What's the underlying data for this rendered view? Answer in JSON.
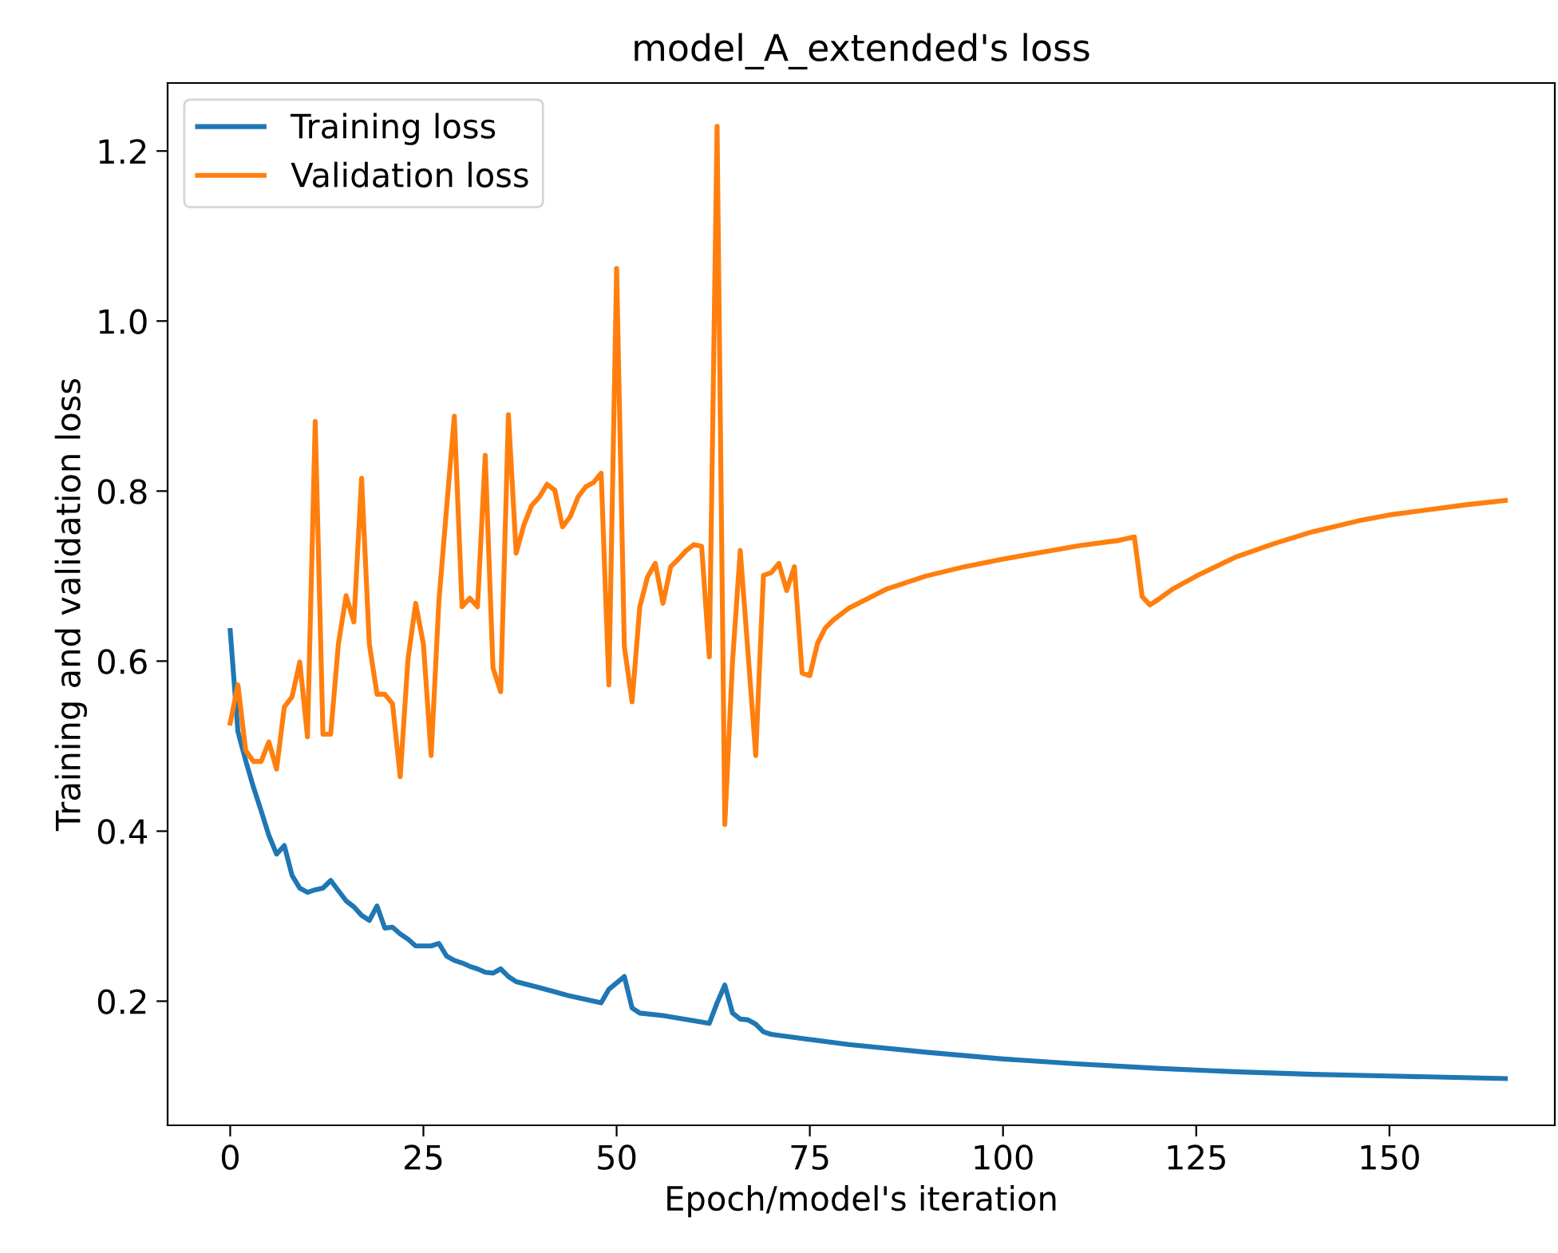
{
  "chart_data": {
    "type": "line",
    "title": "model_A_extended's loss",
    "xlabel": "Epoch/model's iteration",
    "ylabel": "Training and validation loss",
    "xlim": [
      -8.1,
      171.4
    ],
    "ylim": [
      0.054,
      1.28
    ],
    "xticks": [
      0,
      25,
      50,
      75,
      100,
      125,
      150
    ],
    "yticks": [
      0.2,
      0.4,
      0.6,
      0.8,
      {
        "value": 1.0,
        "label": "1.0"
      },
      1.2
    ],
    "grid": false,
    "legend": "top left",
    "series": [
      {
        "name": "Training loss",
        "color": "#1f77b4",
        "x": [
          0,
          1,
          2,
          3,
          4,
          5,
          6,
          7,
          8,
          9,
          10,
          11,
          12,
          13,
          14,
          15,
          16,
          17,
          18,
          19,
          20,
          21,
          22,
          23,
          24,
          25,
          26,
          27,
          28,
          29,
          30,
          31,
          32,
          33,
          34,
          35,
          36,
          37,
          40,
          42,
          44,
          46,
          48,
          49,
          51,
          52,
          53,
          56,
          58,
          60,
          62,
          63,
          64,
          65,
          66,
          67,
          68,
          69,
          70,
          75,
          80,
          90,
          100,
          110,
          120,
          130,
          140,
          150,
          165
        ],
        "values": [
          0.636,
          0.517,
          0.483,
          0.452,
          0.424,
          0.395,
          0.373,
          0.383,
          0.348,
          0.333,
          0.328,
          0.331,
          0.333,
          0.342,
          0.33,
          0.318,
          0.311,
          0.301,
          0.295,
          0.312,
          0.286,
          0.287,
          0.279,
          0.273,
          0.265,
          0.265,
          0.265,
          0.268,
          0.253,
          0.248,
          0.245,
          0.241,
          0.238,
          0.234,
          0.233,
          0.238,
          0.229,
          0.223,
          0.216,
          0.211,
          0.206,
          0.202,
          0.198,
          0.214,
          0.229,
          0.192,
          0.186,
          0.183,
          0.18,
          0.177,
          0.174,
          0.198,
          0.219,
          0.186,
          0.179,
          0.178,
          0.173,
          0.164,
          0.161,
          0.155,
          0.149,
          0.14,
          0.132,
          0.126,
          0.121,
          0.117,
          0.114,
          0.112,
          0.109
        ]
      },
      {
        "name": "Validation loss",
        "color": "#ff7f0e",
        "x": [
          0,
          1,
          2,
          3,
          4,
          5,
          6,
          7,
          8,
          9,
          10,
          11,
          12,
          13,
          14,
          15,
          16,
          17,
          18,
          19,
          20,
          21,
          22,
          23,
          24,
          25,
          26,
          27,
          28,
          29,
          30,
          31,
          32,
          33,
          34,
          35,
          36,
          37,
          38,
          39,
          40,
          41,
          42,
          43,
          44,
          45,
          46,
          47,
          48,
          49,
          50,
          51,
          52,
          53,
          54,
          55,
          56,
          57,
          58,
          59,
          60,
          61,
          62,
          63,
          64,
          65,
          66,
          67,
          68,
          69,
          70,
          71,
          72,
          73,
          74,
          75,
          76,
          77,
          78,
          80,
          85,
          90,
          95,
          100,
          105,
          110,
          115,
          117,
          118,
          119,
          120,
          122,
          125,
          130,
          135,
          140,
          146,
          150,
          155,
          160,
          165
        ],
        "values": [
          0.527,
          0.572,
          0.495,
          0.482,
          0.482,
          0.505,
          0.473,
          0.546,
          0.558,
          0.599,
          0.511,
          0.882,
          0.514,
          0.514,
          0.62,
          0.677,
          0.646,
          0.815,
          0.62,
          0.561,
          0.561,
          0.55,
          0.464,
          0.602,
          0.668,
          0.62,
          0.489,
          0.67,
          0.78,
          0.888,
          0.664,
          0.674,
          0.664,
          0.842,
          0.592,
          0.564,
          0.89,
          0.727,
          0.76,
          0.783,
          0.793,
          0.808,
          0.801,
          0.758,
          0.77,
          0.793,
          0.805,
          0.81,
          0.821,
          0.572,
          1.062,
          0.617,
          0.552,
          0.664,
          0.699,
          0.715,
          0.668,
          0.711,
          0.72,
          0.73,
          0.737,
          0.735,
          0.605,
          1.229,
          0.408,
          0.6,
          0.73,
          0.61,
          0.489,
          0.701,
          0.704,
          0.715,
          0.683,
          0.711,
          0.586,
          0.583,
          0.621,
          0.639,
          0.648,
          0.662,
          0.685,
          0.7,
          0.711,
          0.72,
          0.728,
          0.736,
          0.742,
          0.746,
          0.676,
          0.666,
          0.672,
          0.685,
          0.7,
          0.722,
          0.738,
          0.752,
          0.765,
          0.772,
          0.778,
          0.784,
          0.789
        ]
      }
    ]
  }
}
